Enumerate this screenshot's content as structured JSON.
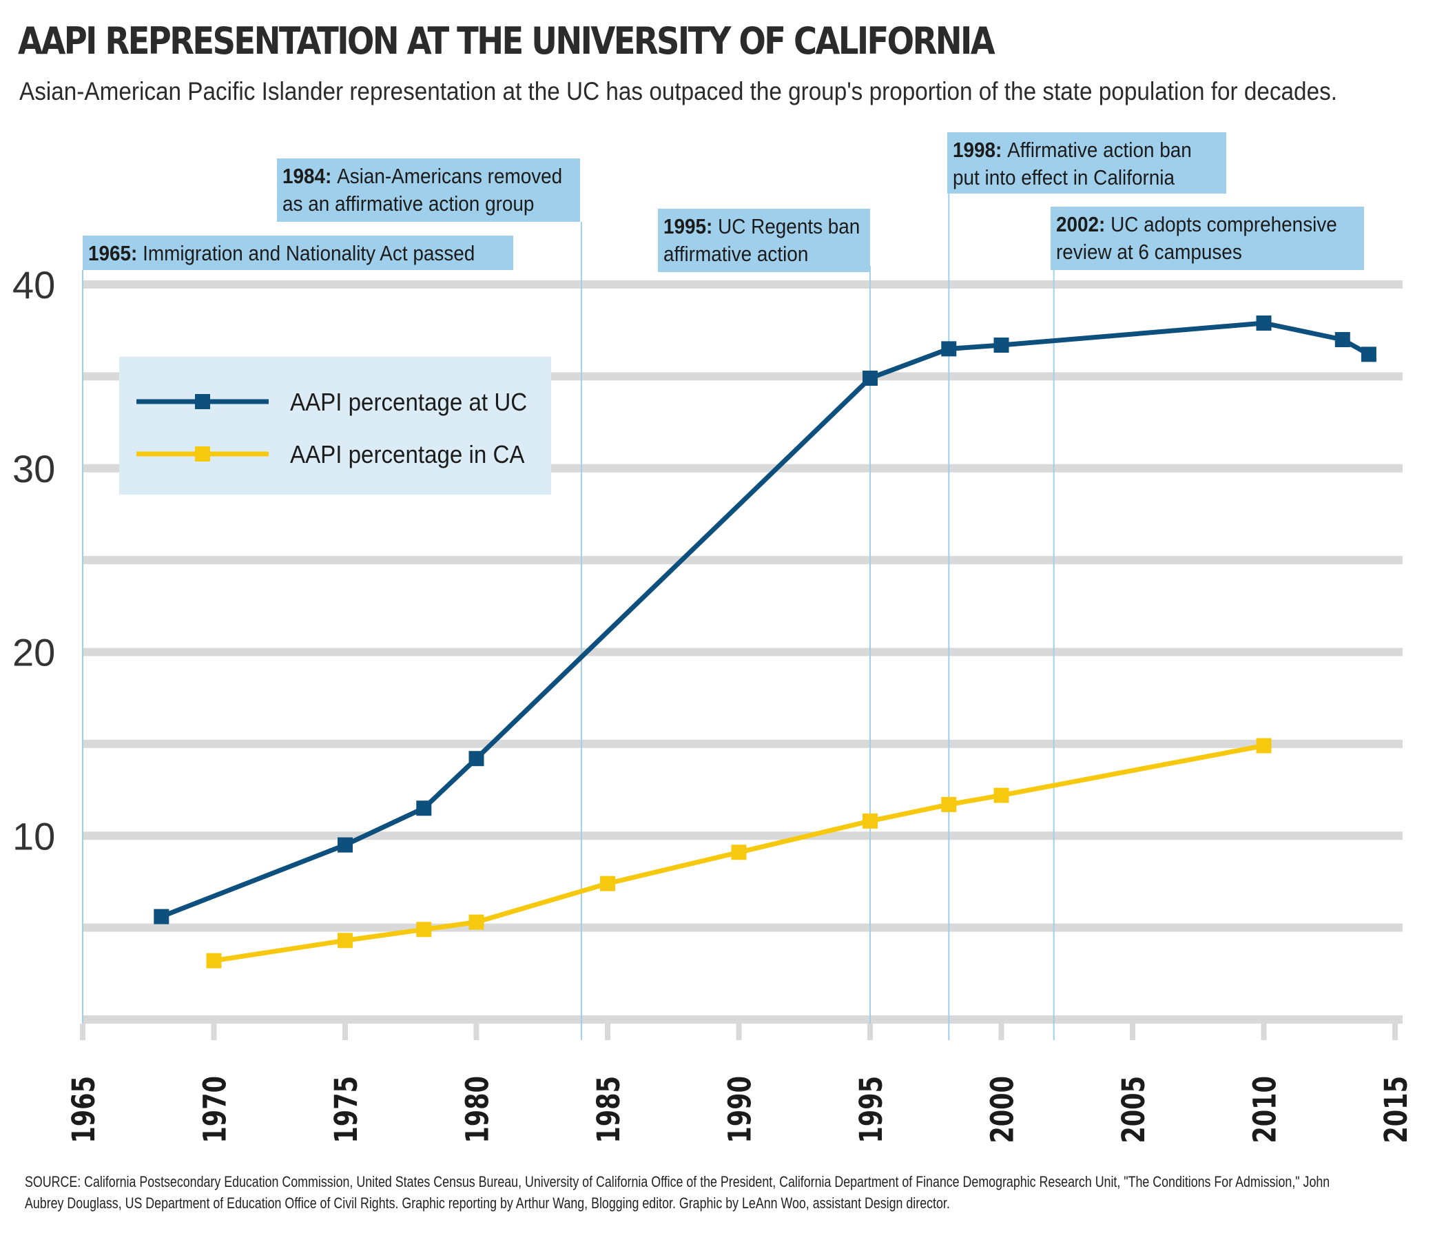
{
  "header": {
    "title": "AAPI REPRESENTATION AT THE UNIVERSITY OF CALIFORNIA",
    "subtitle": "Asian-American Pacific Islander representation at the UC has outpaced the group's proportion of the state population for decades."
  },
  "source": "SOURCE: California Postsecondary Education Commission, United States Census Bureau, University of California Office of the President, California Department of Finance Demographic Research Unit, \"The Conditions For Admission,\" John Aubrey Douglass, US Department of Education Office of Civil Rights. Graphic reporting by Arthur Wang, Blogging editor. Graphic by LeAnn Woo, assistant Design director.",
  "chart_data": {
    "type": "line",
    "title": "AAPI REPRESENTATION AT THE UNIVERSITY OF CALIFORNIA",
    "xlabel": "",
    "ylabel": "",
    "xlim": [
      1965,
      2015
    ],
    "ylim": [
      0,
      40
    ],
    "x_ticks": [
      1965,
      1970,
      1975,
      1980,
      1985,
      1990,
      1995,
      2000,
      2005,
      2010,
      2015
    ],
    "y_ticks": [
      10,
      20,
      30,
      40
    ],
    "y_gridlines": [
      0,
      5,
      10,
      15,
      20,
      25,
      30,
      35,
      40
    ],
    "grid": true,
    "legend_position": "upper-left",
    "series": [
      {
        "name": "AAPI percentage at UC",
        "color": "#0d4f7d",
        "x": [
          1968,
          1975,
          1978,
          1980,
          1995,
          1998,
          2000,
          2010,
          2013,
          2014
        ],
        "y": [
          5.6,
          9.5,
          11.5,
          14.2,
          34.9,
          36.5,
          36.7,
          37.9,
          37.0,
          36.2
        ]
      },
      {
        "name": "AAPI percentage in CA",
        "color": "#f7c90e",
        "x": [
          1970,
          1975,
          1978,
          1980,
          1985,
          1990,
          1995,
          1998,
          2000,
          2010
        ],
        "y": [
          3.2,
          4.3,
          4.9,
          5.3,
          7.4,
          9.1,
          10.8,
          11.7,
          12.2,
          14.9
        ]
      }
    ],
    "annotations": [
      {
        "x": 1965,
        "year": "1965:",
        "lines": [
          "Immigration and Nationality Act passed"
        ]
      },
      {
        "x": 1984,
        "year": "1984:",
        "lines": [
          "Asian-Americans removed",
          "as an affirmative action group"
        ]
      },
      {
        "x": 1995,
        "year": "1995:",
        "lines": [
          "UC Regents ban",
          "affirmative action"
        ]
      },
      {
        "x": 1998,
        "year": "1998:",
        "lines": [
          "Affirmative action ban",
          "put into effect in California"
        ]
      },
      {
        "x": 2002,
        "year": "2002:",
        "lines": [
          "UC adopts comprehensive",
          "review at 6 campuses"
        ]
      }
    ],
    "colors": {
      "grid": "#d9d9d9",
      "annotation_line": "#9fcfea",
      "annotation_box": "#9fcfea",
      "legend_box": "#dcecf6"
    }
  }
}
